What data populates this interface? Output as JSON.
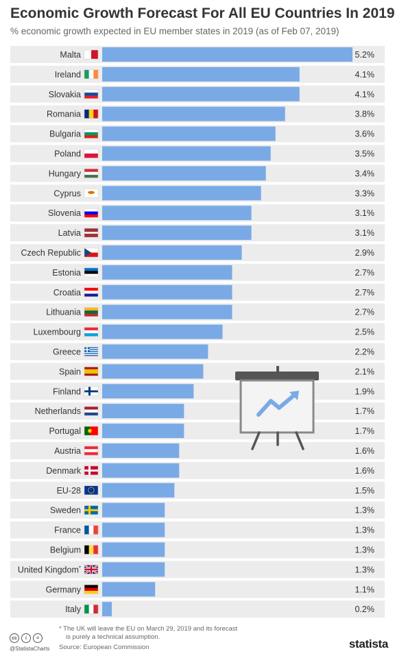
{
  "header": {
    "title": "Economic Growth Forecast For All EU Countries In 2019",
    "subtitle": "% economic growth expected in EU member states in 2019 (as of Feb 07, 2019)"
  },
  "chart_data": {
    "type": "bar",
    "orientation": "horizontal",
    "categories": [
      "Malta",
      "Ireland",
      "Slovakia",
      "Romania",
      "Bulgaria",
      "Poland",
      "Hungary",
      "Cyprus",
      "Slovenia",
      "Latvia",
      "Czech Republic",
      "Estonia",
      "Croatia",
      "Lithuania",
      "Luxembourg",
      "Greece",
      "Spain",
      "Finland",
      "Netherlands",
      "Portugal",
      "Austria",
      "Denmark",
      "EU-28",
      "Sweden",
      "France",
      "Belgium",
      "United Kingdom",
      "Germany",
      "Italy"
    ],
    "values": [
      5.2,
      4.1,
      4.1,
      3.8,
      3.6,
      3.5,
      3.4,
      3.3,
      3.1,
      3.1,
      2.9,
      2.7,
      2.7,
      2.7,
      2.5,
      2.2,
      2.1,
      1.9,
      1.7,
      1.7,
      1.6,
      1.6,
      1.5,
      1.3,
      1.3,
      1.3,
      1.3,
      1.1,
      0.2
    ],
    "value_labels": [
      "5.2%",
      "4.1%",
      "4.1%",
      "3.8%",
      "3.6%",
      "3.5%",
      "3.4%",
      "3.3%",
      "3.1%",
      "3.1%",
      "2.9%",
      "2.7%",
      "2.7%",
      "2.7%",
      "2.5%",
      "2.2%",
      "2.1%",
      "1.9%",
      "1.7%",
      "1.7%",
      "1.6%",
      "1.6%",
      "1.5%",
      "1.3%",
      "1.3%",
      "1.3%",
      "1.3%",
      "1.1%",
      "0.2%"
    ],
    "footnote_marker": "*",
    "footnote_category": "United Kingdom",
    "xlim": [
      0,
      5.2
    ],
    "bar_color": "#7aaae6",
    "row_background": "#ececec",
    "grid": false,
    "legend": "none"
  },
  "flags": {
    "Malta": {
      "type": "v2",
      "colors": [
        "#ffffff",
        "#cf142b"
      ]
    },
    "Ireland": {
      "type": "v3",
      "colors": [
        "#169b62",
        "#ffffff",
        "#ff883e"
      ]
    },
    "Slovakia": {
      "type": "h3",
      "colors": [
        "#ffffff",
        "#0b4ea2",
        "#ee1c25"
      ]
    },
    "Romania": {
      "type": "v3",
      "colors": [
        "#002b7f",
        "#fcd116",
        "#ce1126"
      ]
    },
    "Bulgaria": {
      "type": "h3",
      "colors": [
        "#ffffff",
        "#00966e",
        "#d62612"
      ]
    },
    "Poland": {
      "type": "h2",
      "colors": [
        "#ffffff",
        "#dc143c"
      ]
    },
    "Hungary": {
      "type": "h3",
      "colors": [
        "#ce2939",
        "#ffffff",
        "#477050"
      ]
    },
    "Cyprus": {
      "type": "plain",
      "colors": [
        "#ffffff",
        "#d57800"
      ]
    },
    "Slovenia": {
      "type": "h3",
      "colors": [
        "#ffffff",
        "#0000ff",
        "#ff0000"
      ]
    },
    "Latvia": {
      "type": "latvia",
      "colors": [
        "#9e3039",
        "#ffffff"
      ]
    },
    "Czech Republic": {
      "type": "czech",
      "colors": [
        "#ffffff",
        "#d7141a",
        "#11457e"
      ]
    },
    "Estonia": {
      "type": "h3",
      "colors": [
        "#0072ce",
        "#000000",
        "#ffffff"
      ]
    },
    "Croatia": {
      "type": "h3",
      "colors": [
        "#ff0000",
        "#ffffff",
        "#171796"
      ]
    },
    "Lithuania": {
      "type": "h3",
      "colors": [
        "#fdb913",
        "#006a44",
        "#c1272d"
      ]
    },
    "Luxembourg": {
      "type": "h3",
      "colors": [
        "#ed2939",
        "#ffffff",
        "#00a1de"
      ]
    },
    "Greece": {
      "type": "greece",
      "colors": [
        "#0d5eaf",
        "#ffffff"
      ]
    },
    "Spain": {
      "type": "spain",
      "colors": [
        "#aa151b",
        "#f1bf00"
      ]
    },
    "Finland": {
      "type": "nordic",
      "colors": [
        "#ffffff",
        "#003580"
      ]
    },
    "Netherlands": {
      "type": "h3",
      "colors": [
        "#ae1c28",
        "#ffffff",
        "#21468b"
      ]
    },
    "Portugal": {
      "type": "portugal",
      "colors": [
        "#006600",
        "#ff0000"
      ]
    },
    "Austria": {
      "type": "h3",
      "colors": [
        "#ed2939",
        "#ffffff",
        "#ed2939"
      ]
    },
    "Denmark": {
      "type": "nordic",
      "colors": [
        "#c60c30",
        "#ffffff"
      ]
    },
    "EU-28": {
      "type": "eu",
      "colors": [
        "#003399",
        "#ffcc00"
      ]
    },
    "Sweden": {
      "type": "nordic",
      "colors": [
        "#006aa7",
        "#fecc00"
      ]
    },
    "France": {
      "type": "v3",
      "colors": [
        "#0055a4",
        "#ffffff",
        "#ef4135"
      ]
    },
    "Belgium": {
      "type": "v3",
      "colors": [
        "#000000",
        "#fae042",
        "#ed2939"
      ]
    },
    "United Kingdom": {
      "type": "uk",
      "colors": [
        "#012169",
        "#ffffff",
        "#c8102e"
      ]
    },
    "Germany": {
      "type": "h3",
      "colors": [
        "#000000",
        "#dd0000",
        "#ffce00"
      ]
    },
    "Italy": {
      "type": "v3",
      "colors": [
        "#009246",
        "#ffffff",
        "#ce2b37"
      ]
    }
  },
  "illustration": {
    "icon": "presentation-board-trend-icon",
    "colors": [
      "#555555",
      "#7aaae6",
      "#f4f4f4"
    ]
  },
  "footer": {
    "cc_icons": [
      "cc",
      "i",
      "="
    ],
    "handle": "@StatistaCharts",
    "note_line1": "* The UK will leave the EU on March 29, 2019 and its forecast",
    "note_line2": "is purely a technical assumption.",
    "source": "Source: European Commission",
    "logo": "statista"
  }
}
